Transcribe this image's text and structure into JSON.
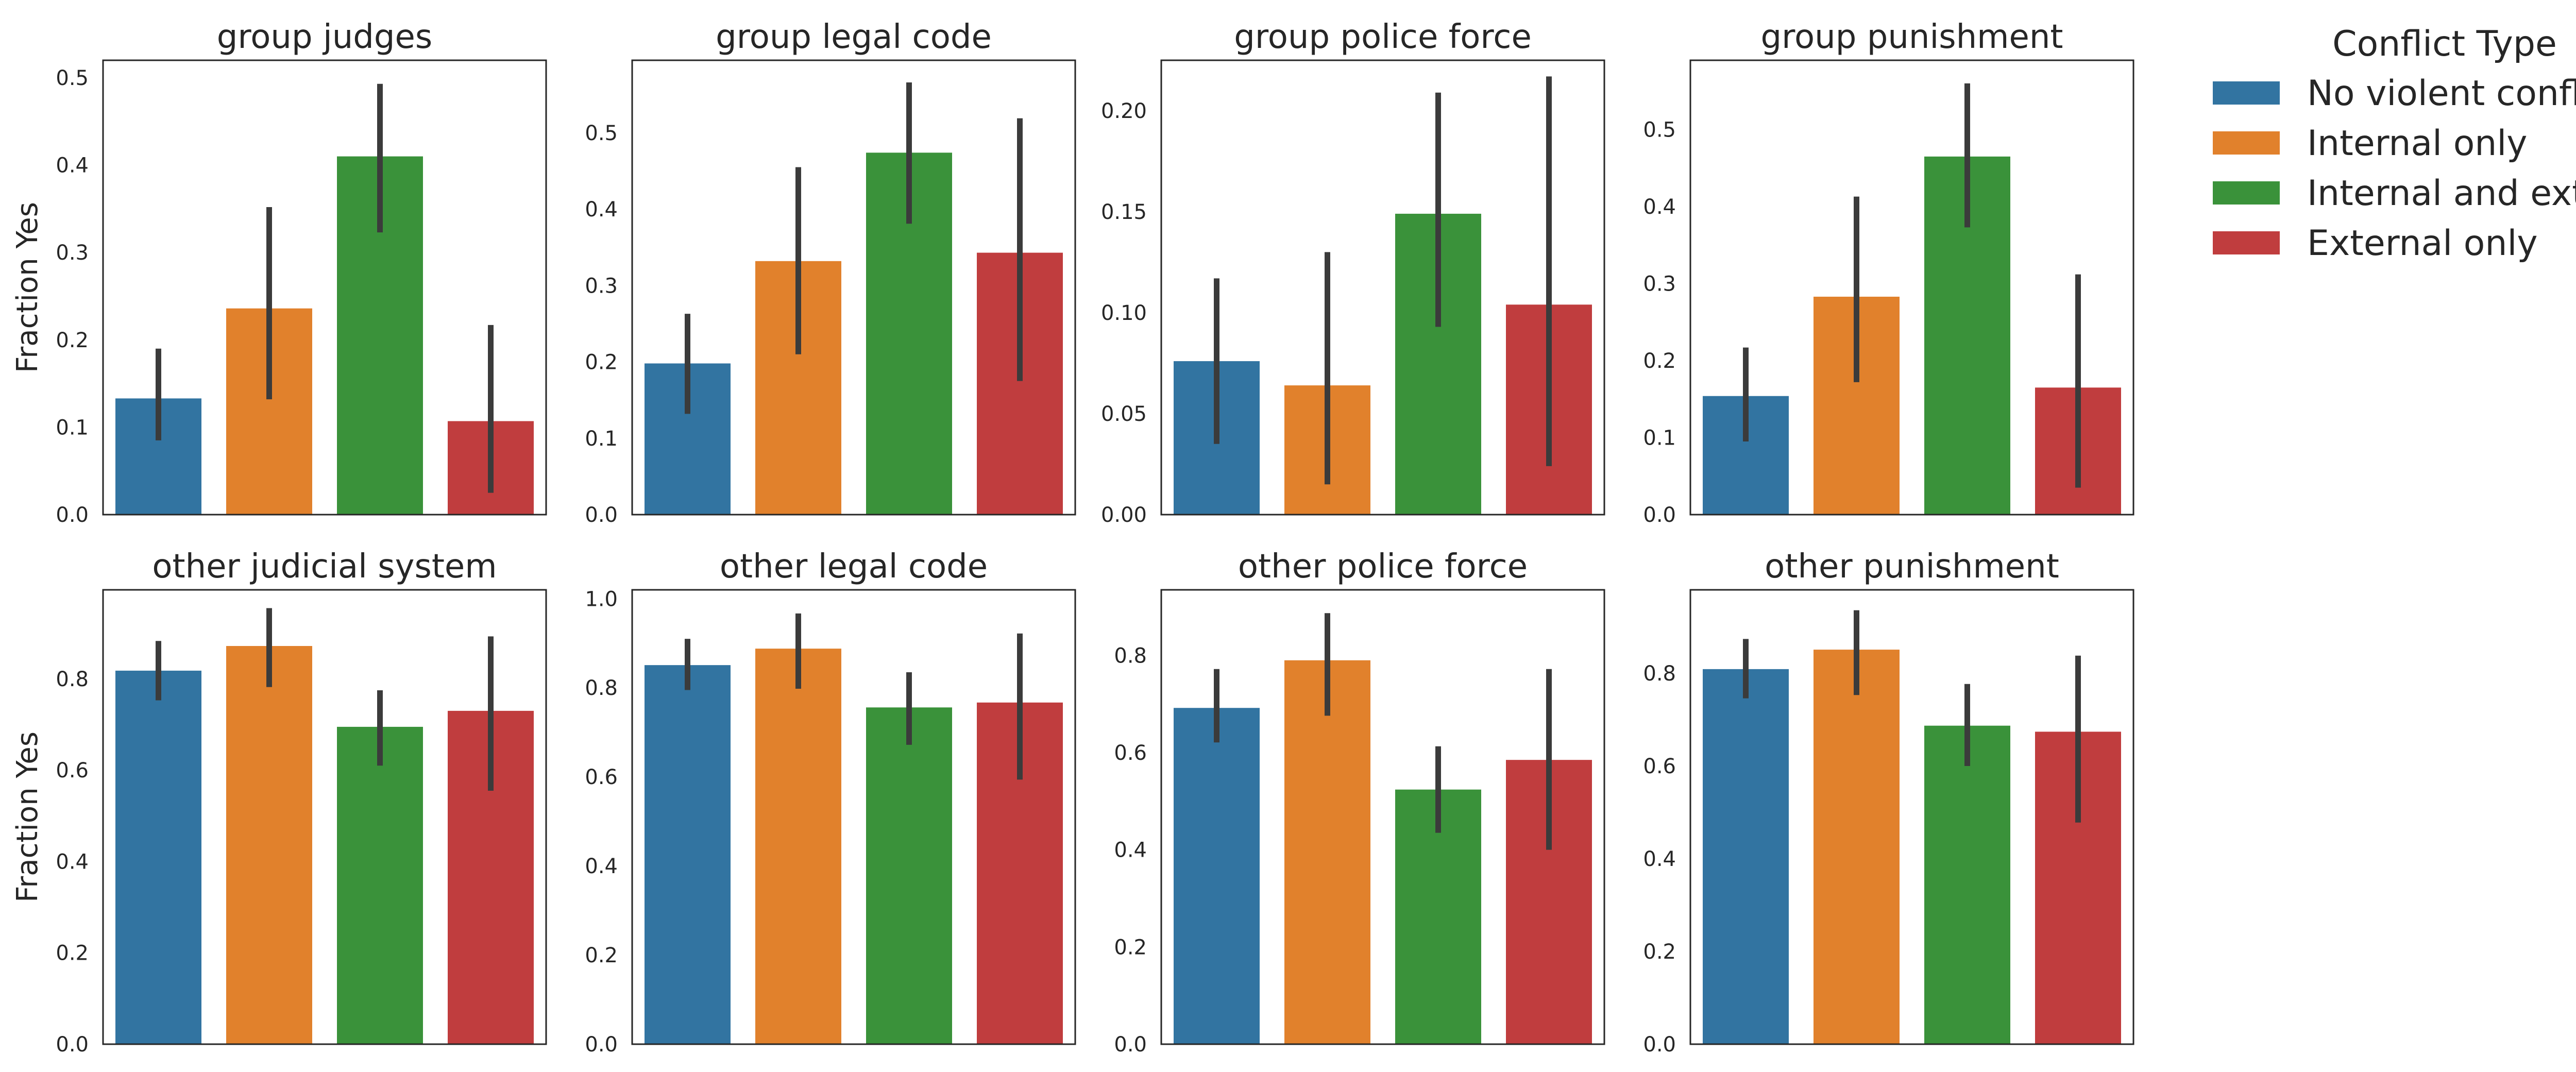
{
  "legend": {
    "title": "Conflict Type",
    "entries": [
      {
        "label": "No violent conflict",
        "color": "#3274a1"
      },
      {
        "label": "Internal only",
        "color": "#e1812c"
      },
      {
        "label": "Internal and external",
        "color": "#3a923a"
      },
      {
        "label": "External only",
        "color": "#c03d3e"
      }
    ],
    "placement": "outside-right-top"
  },
  "error_bar_color": "#3b3b3b",
  "chart_data": [
    {
      "type": "bar",
      "title": "group judges",
      "ylabel": "Fraction Yes",
      "xlabel": "",
      "categories": [
        "No violent conflict",
        "Internal only",
        "Internal and external",
        "External only"
      ],
      "values": [
        0.133,
        0.236,
        0.41,
        0.107
      ],
      "error_low": [
        0.085,
        0.132,
        0.323,
        0.025
      ],
      "error_high": [
        0.19,
        0.352,
        0.493,
        0.217
      ],
      "ylim": [
        0,
        0.52
      ],
      "yticks": [
        0.0,
        0.1,
        0.2,
        0.3,
        0.4,
        0.5
      ],
      "ytick_labels": [
        "0.0",
        "0.1",
        "0.2",
        "0.3",
        "0.4",
        "0.5"
      ],
      "grid": false
    },
    {
      "type": "bar",
      "title": "group legal code",
      "ylabel": "",
      "xlabel": "",
      "categories": [
        "No violent conflict",
        "Internal only",
        "Internal and external",
        "External only"
      ],
      "values": [
        0.198,
        0.332,
        0.474,
        0.343
      ],
      "error_low": [
        0.132,
        0.21,
        0.381,
        0.175
      ],
      "error_high": [
        0.263,
        0.455,
        0.566,
        0.519
      ],
      "ylim": [
        0,
        0.595
      ],
      "yticks": [
        0.0,
        0.1,
        0.2,
        0.3,
        0.4,
        0.5
      ],
      "ytick_labels": [
        "0.0",
        "0.1",
        "0.2",
        "0.3",
        "0.4",
        "0.5"
      ],
      "grid": false
    },
    {
      "type": "bar",
      "title": "group police force",
      "ylabel": "",
      "xlabel": "",
      "categories": [
        "No violent conflict",
        "Internal only",
        "Internal and external",
        "External only"
      ],
      "values": [
        0.076,
        0.064,
        0.149,
        0.104
      ],
      "error_low": [
        0.035,
        0.015,
        0.093,
        0.024
      ],
      "error_high": [
        0.117,
        0.13,
        0.209,
        0.217
      ],
      "ylim": [
        0,
        0.225
      ],
      "yticks": [
        0.0,
        0.05,
        0.1,
        0.15,
        0.2
      ],
      "ytick_labels": [
        "0.00",
        "0.05",
        "0.10",
        "0.15",
        "0.20"
      ],
      "grid": false
    },
    {
      "type": "bar",
      "title": "group punishment",
      "ylabel": "",
      "xlabel": "",
      "categories": [
        "No violent conflict",
        "Internal only",
        "Internal and external",
        "External only"
      ],
      "values": [
        0.154,
        0.283,
        0.465,
        0.165
      ],
      "error_low": [
        0.095,
        0.172,
        0.373,
        0.035
      ],
      "error_high": [
        0.217,
        0.413,
        0.56,
        0.312
      ],
      "ylim": [
        0,
        0.59
      ],
      "yticks": [
        0.0,
        0.1,
        0.2,
        0.3,
        0.4,
        0.5
      ],
      "ytick_labels": [
        "0.0",
        "0.1",
        "0.2",
        "0.3",
        "0.4",
        "0.5"
      ],
      "grid": false
    },
    {
      "type": "bar",
      "title": "other judicial system",
      "ylabel": "Fraction Yes",
      "xlabel": "",
      "categories": [
        "No violent conflict",
        "Internal only",
        "Internal and external",
        "External only"
      ],
      "values": [
        0.818,
        0.872,
        0.695,
        0.73
      ],
      "error_low": [
        0.753,
        0.782,
        0.61,
        0.555
      ],
      "error_high": [
        0.883,
        0.955,
        0.775,
        0.893
      ],
      "ylim": [
        0,
        0.995
      ],
      "yticks": [
        0.0,
        0.2,
        0.4,
        0.6,
        0.8
      ],
      "ytick_labels": [
        "0.0",
        "0.2",
        "0.4",
        "0.6",
        "0.8"
      ],
      "grid": false
    },
    {
      "type": "bar",
      "title": "other legal code",
      "ylabel": "",
      "xlabel": "",
      "categories": [
        "No violent conflict",
        "Internal only",
        "Internal and external",
        "External only"
      ],
      "values": [
        0.851,
        0.888,
        0.756,
        0.767
      ],
      "error_low": [
        0.795,
        0.798,
        0.672,
        0.594
      ],
      "error_high": [
        0.91,
        0.967,
        0.835,
        0.922
      ],
      "ylim": [
        0,
        1.02
      ],
      "yticks": [
        0.0,
        0.2,
        0.4,
        0.6,
        0.8,
        1.0
      ],
      "ytick_labels": [
        "0.0",
        "0.2",
        "0.4",
        "0.6",
        "0.8",
        "1.0"
      ],
      "grid": false
    },
    {
      "type": "bar",
      "title": "other police force",
      "ylabel": "",
      "xlabel": "",
      "categories": [
        "No violent conflict",
        "Internal only",
        "Internal and external",
        "External only"
      ],
      "values": [
        0.692,
        0.79,
        0.524,
        0.585
      ],
      "error_low": [
        0.621,
        0.676,
        0.435,
        0.4
      ],
      "error_high": [
        0.772,
        0.887,
        0.613,
        0.772
      ],
      "ylim": [
        0,
        0.935
      ],
      "yticks": [
        0.0,
        0.2,
        0.4,
        0.6,
        0.8
      ],
      "ytick_labels": [
        "0.0",
        "0.2",
        "0.4",
        "0.6",
        "0.8"
      ],
      "grid": false
    },
    {
      "type": "bar",
      "title": "other punishment",
      "ylabel": "",
      "xlabel": "",
      "categories": [
        "No violent conflict",
        "Internal only",
        "Internal and external",
        "External only"
      ],
      "values": [
        0.809,
        0.851,
        0.687,
        0.674
      ],
      "error_low": [
        0.746,
        0.753,
        0.6,
        0.478
      ],
      "error_high": [
        0.874,
        0.936,
        0.777,
        0.838
      ],
      "ylim": [
        0,
        0.98
      ],
      "yticks": [
        0.0,
        0.2,
        0.4,
        0.6,
        0.8
      ],
      "ytick_labels": [
        "0.0",
        "0.2",
        "0.4",
        "0.6",
        "0.8"
      ],
      "grid": false
    }
  ]
}
